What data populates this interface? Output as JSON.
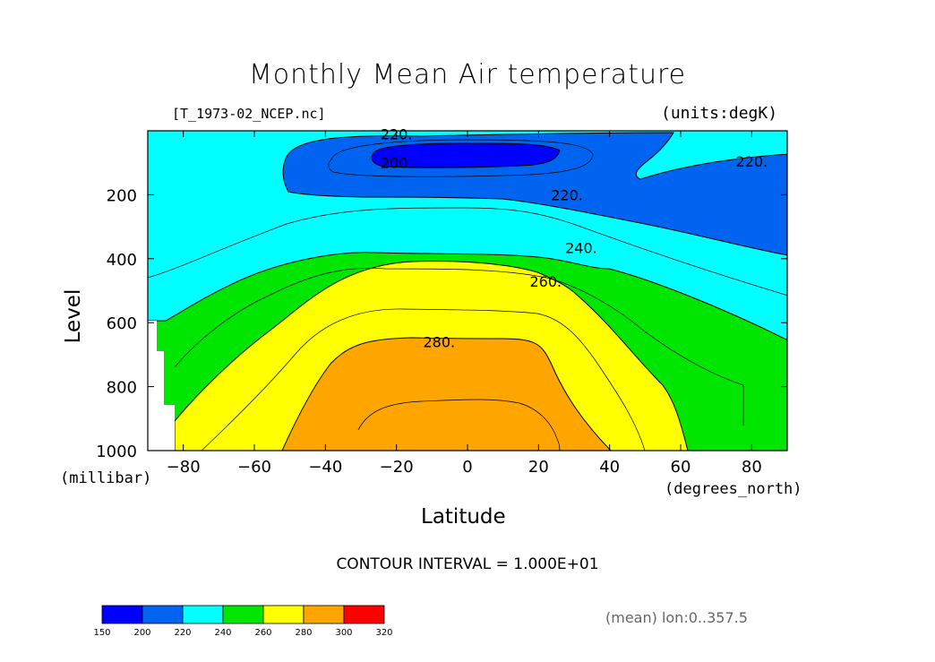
{
  "chart_data": {
    "type": "heatmap",
    "title": "Monthly Mean Air temperature",
    "subtitle_left": "[T_1973-02_NCEP.nc]",
    "subtitle_right": "(units:degK)",
    "xlabel": "Latitude",
    "xunit": "(degrees_north)",
    "ylabel": "Level",
    "yunit": "(millibar)",
    "xlim": [
      -90,
      90
    ],
    "ylim": [
      0,
      1000
    ],
    "y_reversed": true,
    "x_ticks": [
      "-80",
      "-60",
      "-40",
      "-20",
      "0",
      "20",
      "40",
      "60",
      "80"
    ],
    "x_tick_values": [
      -80,
      -60,
      -40,
      -20,
      0,
      20,
      40,
      60,
      80
    ],
    "y_ticks": [
      "200",
      "400",
      "600",
      "800",
      "1000"
    ],
    "y_tick_values": [
      200,
      400,
      600,
      800,
      1000
    ],
    "contour_labels": [
      {
        "text": "220.",
        "lat": -20,
        "level": 10
      },
      {
        "text": "200.",
        "lat": -20,
        "level": 100
      },
      {
        "text": "220.",
        "lat": 80,
        "level": 95
      },
      {
        "text": "220.",
        "lat": 28,
        "level": 200
      },
      {
        "text": "240.",
        "lat": 32,
        "level": 365
      },
      {
        "text": "260.",
        "lat": 22,
        "level": 470
      },
      {
        "text": "280.",
        "lat": -8,
        "level": 660
      }
    ],
    "contour_interval_text": "CONTOUR INTERVAL = 1.000E+01",
    "mean_note": "(mean) lon:0..357.5",
    "colorbar": {
      "ticks": [
        "150",
        "200",
        "220",
        "240",
        "260",
        "280",
        "300",
        "320"
      ],
      "colors": [
        "#0000ff",
        "#0064f0",
        "#00ffff",
        "#00e600",
        "#ffff00",
        "#ffa500",
        "#ff0000"
      ]
    },
    "bands": [
      {
        "range": "200-220",
        "color": "#0064f0"
      },
      {
        "range": "<200",
        "color": "#0000ff"
      },
      {
        "range": "220-240",
        "color": "#00ffff"
      },
      {
        "range": "240-260",
        "color": "#00e600"
      },
      {
        "range": "260-280",
        "color": "#ffff00"
      },
      {
        "range": ">280",
        "color": "#ffa500"
      }
    ]
  }
}
